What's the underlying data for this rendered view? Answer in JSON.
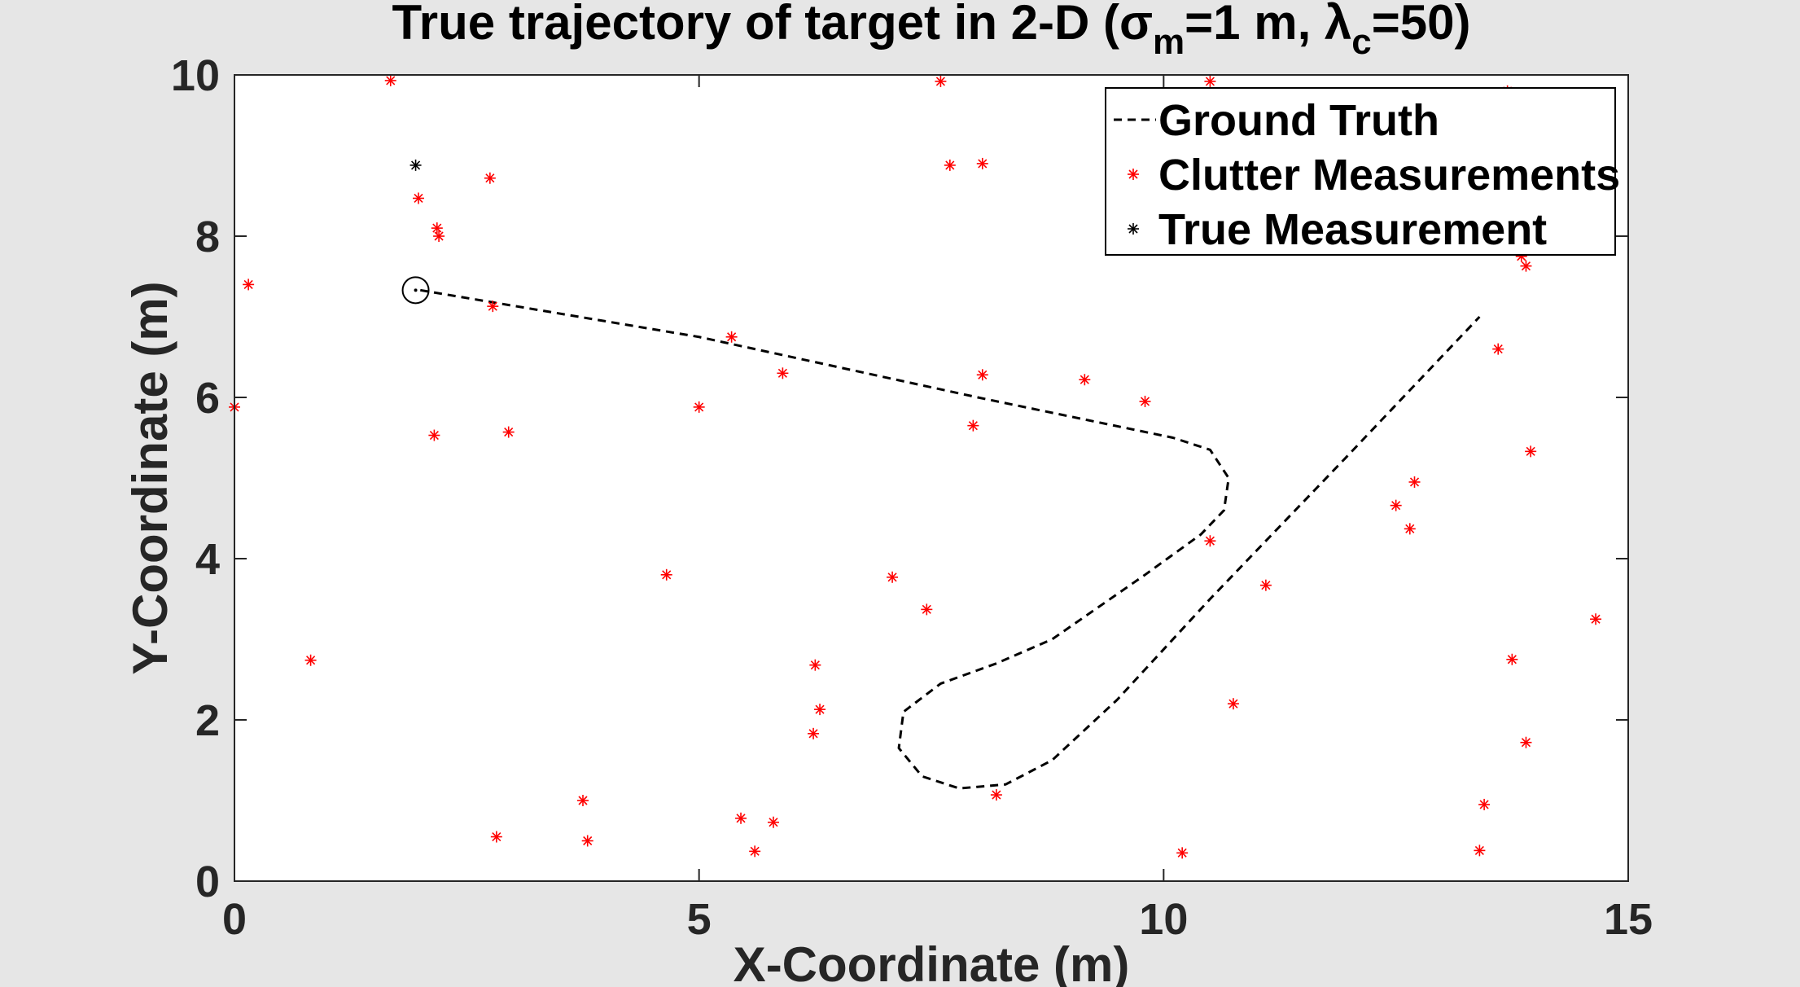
{
  "chart_data": {
    "type": "scatter",
    "title": "True trajectory of target in 2-D (σ",
    "title_sub1": "m",
    "title_mid": "=1 m, λ",
    "title_sub2": "c",
    "title_end": "=50)",
    "xlabel": "X-Coordinate (m)",
    "ylabel": "Y-Coordinate (m)",
    "xlim": [
      0,
      15
    ],
    "ylim": [
      0,
      10
    ],
    "xticks": [
      0,
      5,
      10,
      15
    ],
    "yticks": [
      0,
      2,
      4,
      6,
      8,
      10
    ],
    "grid": false,
    "legend_position": "top-right",
    "colors": {
      "ground_truth": "#000000",
      "clutter": "#ff0000",
      "true_meas": "#000000",
      "plot_bg": "#ffffff",
      "figure_bg": "#e6e6e6"
    },
    "series": [
      {
        "name": "Ground Truth",
        "style": "dashed-line",
        "points": [
          [
            2.0,
            7.33
          ],
          [
            5.0,
            6.75
          ],
          [
            8.0,
            6.0
          ],
          [
            10.1,
            5.5
          ],
          [
            10.5,
            5.35
          ],
          [
            10.7,
            5.0
          ],
          [
            10.65,
            4.6
          ],
          [
            10.4,
            4.3
          ],
          [
            9.8,
            3.8
          ],
          [
            8.8,
            3.0
          ],
          [
            8.2,
            2.7
          ],
          [
            7.6,
            2.45
          ],
          [
            7.2,
            2.1
          ],
          [
            7.15,
            1.65
          ],
          [
            7.4,
            1.3
          ],
          [
            7.8,
            1.15
          ],
          [
            8.3,
            1.2
          ],
          [
            8.8,
            1.5
          ],
          [
            9.5,
            2.25
          ],
          [
            10.5,
            3.5
          ],
          [
            12.0,
            5.3
          ],
          [
            13.4,
            7.0
          ]
        ]
      },
      {
        "name": "Clutter Measurements",
        "style": "red-asterisk",
        "points": [
          [
            1.68,
            9.93
          ],
          [
            0.15,
            7.4
          ],
          [
            0.0,
            5.88
          ],
          [
            0.82,
            2.74
          ],
          [
            1.98,
            8.47
          ],
          [
            2.18,
            8.1
          ],
          [
            2.2,
            8.0
          ],
          [
            2.75,
            8.72
          ],
          [
            2.78,
            7.13
          ],
          [
            2.15,
            5.53
          ],
          [
            2.95,
            5.57
          ],
          [
            2.82,
            0.55
          ],
          [
            3.75,
            1.0
          ],
          [
            3.8,
            0.5
          ],
          [
            4.65,
            3.8
          ],
          [
            5.0,
            5.88
          ],
          [
            5.35,
            6.75
          ],
          [
            5.45,
            0.78
          ],
          [
            5.6,
            0.37
          ],
          [
            5.8,
            0.73
          ],
          [
            5.9,
            6.3
          ],
          [
            6.25,
            2.68
          ],
          [
            6.3,
            2.13
          ],
          [
            6.23,
            1.83
          ],
          [
            7.08,
            3.77
          ],
          [
            7.45,
            3.37
          ],
          [
            7.6,
            9.92
          ],
          [
            7.7,
            8.88
          ],
          [
            7.95,
            5.65
          ],
          [
            8.05,
            6.28
          ],
          [
            8.05,
            8.9
          ],
          [
            8.2,
            1.07
          ],
          [
            9.15,
            6.22
          ],
          [
            9.8,
            5.95
          ],
          [
            10.2,
            0.35
          ],
          [
            10.5,
            4.22
          ],
          [
            10.5,
            9.92
          ],
          [
            10.75,
            2.2
          ],
          [
            11.1,
            3.67
          ],
          [
            12.5,
            4.66
          ],
          [
            12.65,
            4.37
          ],
          [
            12.7,
            4.95
          ],
          [
            13.45,
            0.95
          ],
          [
            13.4,
            0.38
          ],
          [
            13.6,
            6.6
          ],
          [
            13.7,
            9.8
          ],
          [
            13.75,
            2.75
          ],
          [
            13.85,
            7.75
          ],
          [
            13.9,
            7.63
          ],
          [
            13.9,
            1.72
          ],
          [
            13.95,
            5.33
          ],
          [
            14.65,
            3.25
          ]
        ]
      },
      {
        "name": "True Measurement",
        "style": "black-asterisk",
        "points": [
          [
            1.95,
            8.88
          ]
        ]
      }
    ],
    "start_marker": [
      1.95,
      7.33
    ]
  }
}
